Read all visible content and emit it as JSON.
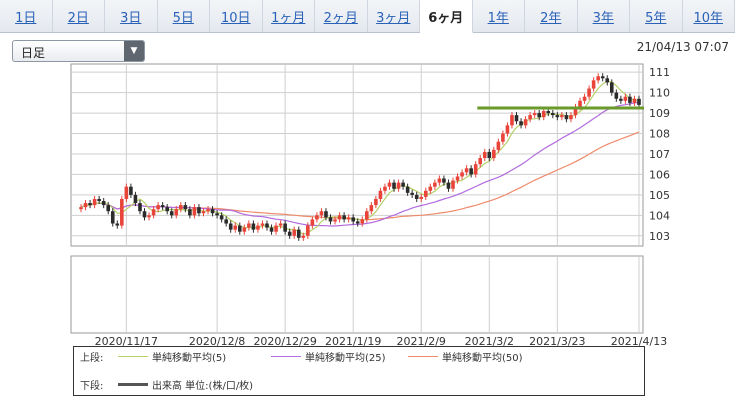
{
  "tabs": [
    {
      "label": "1日",
      "active": false
    },
    {
      "label": "2日",
      "active": false
    },
    {
      "label": "3日",
      "active": false
    },
    {
      "label": "5日",
      "active": false
    },
    {
      "label": "10日",
      "active": false
    },
    {
      "label": "1ヶ月",
      "active": false
    },
    {
      "label": "2ヶ月",
      "active": false
    },
    {
      "label": "3ヶ月",
      "active": false
    },
    {
      "label": "6ヶ月",
      "active": true
    },
    {
      "label": "1年",
      "active": false
    },
    {
      "label": "2年",
      "active": false
    },
    {
      "label": "3年",
      "active": false
    },
    {
      "label": "5年",
      "active": false
    },
    {
      "label": "10年",
      "active": false
    }
  ],
  "period_select": {
    "value": "日足",
    "arrow_icon": "triangle-down-icon"
  },
  "timestamp": "21/04/13 07:07",
  "colors": {
    "up_candle": "#e8443a",
    "down_candle": "#2b2b2b",
    "ma5": "#b5d26a",
    "ma25": "#b36be0",
    "ma50": "#ee8a6a",
    "resistance": "#6a9a2a",
    "grid": "#cfcfcf",
    "frame": "#999999"
  },
  "legend": {
    "top_label": "上段:",
    "bottom_label": "下段:",
    "ma5_label": "単純移動平均(5)",
    "ma25_label": "単純移動平均(25)",
    "ma50_label": "単純移動平均(50)",
    "volume_label": "出来高 単位:(株/口/枚)"
  },
  "chart_data": {
    "type": "candlestick",
    "x_ticks": [
      "2020/11/17",
      "2020/12/8",
      "2020/12/29",
      "2021/1/19",
      "2021/2/9",
      "2021/3/2",
      "2021/3/23",
      "2021/4/13"
    ],
    "y_ticks": [
      103,
      104,
      105,
      106,
      107,
      108,
      109,
      110,
      111
    ],
    "ylim": [
      102.5,
      111.4
    ],
    "grid": true,
    "horizontal_line": 109.25,
    "closes": [
      104.4,
      104.6,
      104.5,
      104.8,
      104.7,
      104.5,
      104.2,
      103.6,
      103.5,
      104.8,
      105.4,
      105.0,
      104.6,
      104.2,
      103.9,
      104.0,
      104.3,
      104.5,
      104.4,
      104.2,
      104.0,
      104.3,
      104.5,
      104.3,
      104.0,
      104.4,
      104.1,
      104.2,
      104.3,
      104.1,
      104.0,
      103.8,
      103.6,
      103.3,
      103.5,
      103.2,
      103.4,
      103.6,
      103.3,
      103.5,
      103.6,
      103.4,
      103.2,
      103.5,
      103.6,
      103.2,
      103.0,
      103.3,
      102.9,
      103.0,
      103.5,
      103.8,
      104.0,
      104.2,
      103.9,
      103.7,
      103.8,
      104.0,
      103.8,
      103.9,
      103.7,
      103.6,
      103.8,
      104.2,
      104.5,
      104.8,
      105.2,
      105.4,
      105.6,
      105.3,
      105.6,
      105.4,
      105.1,
      105.0,
      104.8,
      104.9,
      105.2,
      105.4,
      105.6,
      105.8,
      105.6,
      105.3,
      105.7,
      105.9,
      106.1,
      106.3,
      106.0,
      106.5,
      106.8,
      107.1,
      106.8,
      107.2,
      107.6,
      108.0,
      108.4,
      108.9,
      108.6,
      108.4,
      108.7,
      108.9,
      109.0,
      108.8,
      109.1,
      109.0,
      108.9,
      108.8,
      108.9,
      108.7,
      108.9,
      109.3,
      109.6,
      109.8,
      110.2,
      110.6,
      110.8,
      110.7,
      110.5,
      110.0,
      109.7,
      109.6,
      109.8,
      109.5,
      109.7,
      109.4
    ]
  }
}
